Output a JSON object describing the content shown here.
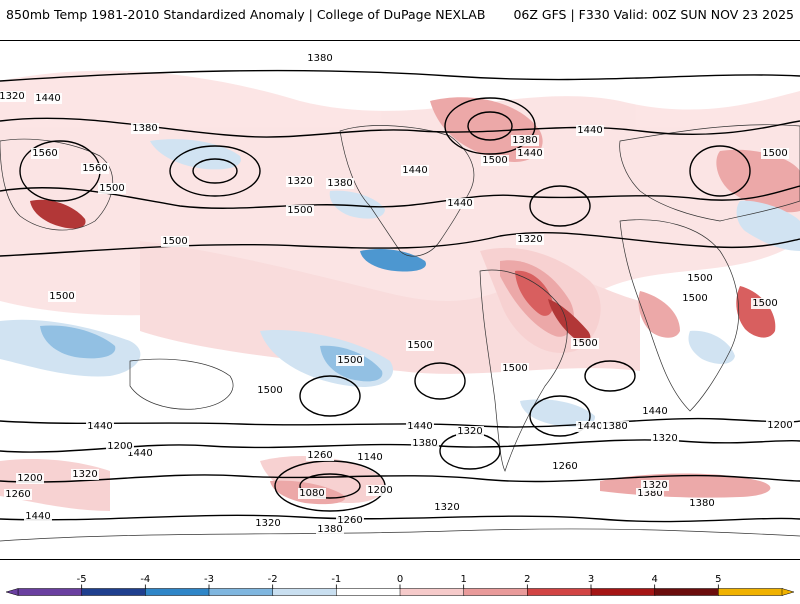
{
  "header": {
    "title": "850mb Temp 1981-2010 Standardized Anomaly | College of DuPage NEXLAB",
    "run_info": "06Z GFS | F330 Valid: 00Z SUN NOV 23 2025"
  },
  "colorbar": {
    "ticks": [
      "-5",
      "-4",
      "-3",
      "-2",
      "-1",
      "0",
      "1",
      "2",
      "3",
      "4",
      "5"
    ],
    "colors": {
      "-5": "#6a3fa0",
      "-4": "#1f3f8f",
      "-3": "#2f86c8",
      "-2": "#7fb6df",
      "-1": "#c9dff0",
      "0": "#ffffff",
      "1": "#f6caca",
      "2": "#e99a9a",
      "3": "#d24444",
      "4": "#a51515",
      "5": "#6b0d0d",
      "high": "#f0b200"
    }
  },
  "map": {
    "background": "#ffffff",
    "contour_labels": [
      "1380",
      "1380",
      "1320",
      "1320",
      "1440",
      "1380",
      "1560",
      "1560",
      "1500",
      "1500",
      "1320",
      "1380",
      "1440",
      "1500",
      "1380",
      "1440",
      "1500",
      "1440",
      "1440",
      "1500",
      "1320",
      "1500",
      "1500",
      "1500",
      "1500",
      "1500",
      "1500",
      "1500",
      "1500",
      "1500",
      "1440",
      "1440",
      "1440",
      "1440",
      "1440",
      "1380",
      "1320",
      "1380",
      "1320",
      "1200",
      "1260",
      "1140",
      "1200",
      "1080",
      "1260",
      "1320",
      "1380",
      "1320",
      "1260",
      "1200",
      "1320",
      "1380",
      "1380",
      "1200",
      "1320",
      "1260",
      "1440"
    ]
  }
}
